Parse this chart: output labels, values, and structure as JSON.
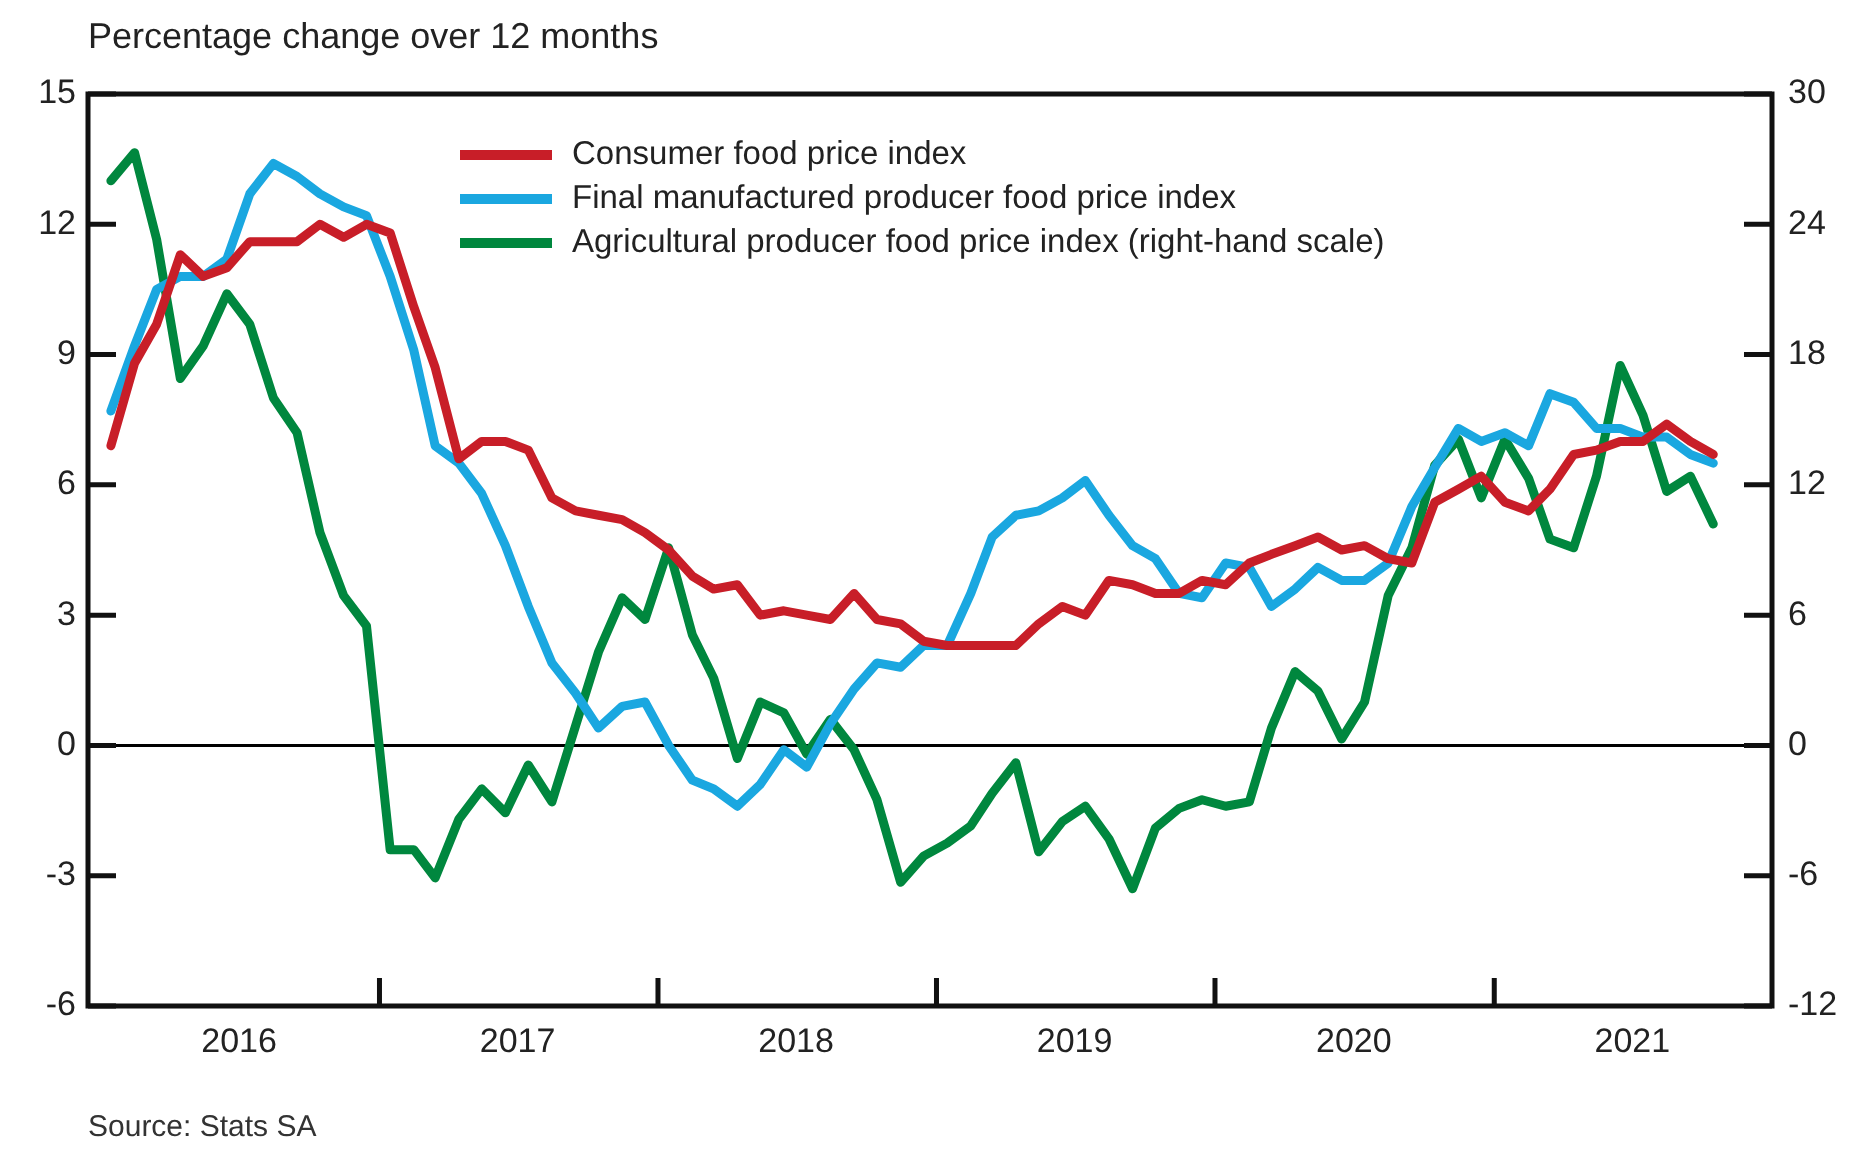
{
  "chart_data": {
    "type": "line",
    "ylabel": "Percentage change over 12 months",
    "x": [
      "2016-01-15",
      "2016-02-15",
      "2016-03-15",
      "2016-04-15",
      "2016-05-15",
      "2016-06-15",
      "2016-07-15",
      "2016-08-15",
      "2016-09-15",
      "2016-10-15",
      "2016-11-15",
      "2016-12-15",
      "2017-01-15",
      "2017-02-15",
      "2017-03-15",
      "2017-04-15",
      "2017-05-15",
      "2017-06-15",
      "2017-07-15",
      "2017-08-15",
      "2017-09-15",
      "2017-10-15",
      "2017-11-15",
      "2017-12-15",
      "2018-01-15",
      "2018-02-15",
      "2018-03-15",
      "2018-04-15",
      "2018-05-15",
      "2018-06-15",
      "2018-07-15",
      "2018-08-15",
      "2018-09-15",
      "2018-10-15",
      "2018-11-15",
      "2018-12-15",
      "2019-01-15",
      "2019-02-15",
      "2019-03-15",
      "2019-04-15",
      "2019-05-15",
      "2019-06-15",
      "2019-07-15",
      "2019-08-15",
      "2019-09-15",
      "2019-10-15",
      "2019-11-15",
      "2019-12-15",
      "2020-01-15",
      "2020-02-15",
      "2020-03-15",
      "2020-04-15",
      "2020-05-15",
      "2020-06-15",
      "2020-07-15",
      "2020-08-15",
      "2020-09-15",
      "2020-10-15",
      "2020-11-15",
      "2020-12-15",
      "2021-01-15",
      "2021-02-15",
      "2021-03-15",
      "2021-04-15",
      "2021-05-15",
      "2021-06-15",
      "2021-07-15",
      "2021-08-15",
      "2021-09-15",
      "2021-10-15"
    ],
    "series": [
      {
        "name": "Consumer food price index",
        "color": "#c81e28",
        "values": [
          6.9,
          8.8,
          9.7,
          11.3,
          10.8,
          11.0,
          11.6,
          11.6,
          11.6,
          12.0,
          11.7,
          12.0,
          11.8,
          10.1,
          8.7,
          6.6,
          7.0,
          7.0,
          6.8,
          5.7,
          5.4,
          5.3,
          5.2,
          4.9,
          4.5,
          3.9,
          3.6,
          3.7,
          3.0,
          3.1,
          3.0,
          2.9,
          3.5,
          2.9,
          2.8,
          2.4,
          2.3,
          2.3,
          2.3,
          2.3,
          2.8,
          3.2,
          3.0,
          3.8,
          3.7,
          3.5,
          3.5,
          3.8,
          3.7,
          4.2,
          4.4,
          4.6,
          4.8,
          4.5,
          4.6,
          4.3,
          4.2,
          5.6,
          5.9,
          6.2,
          5.6,
          5.4,
          5.9,
          6.7,
          6.8,
          7.0,
          7.0,
          7.4,
          7.0,
          6.7
        ]
      },
      {
        "name": "Final manufactured producer food price index",
        "color": "#1aa7e0",
        "values": [
          7.7,
          9.2,
          10.5,
          10.8,
          10.8,
          11.2,
          12.7,
          13.4,
          13.1,
          12.7,
          12.4,
          12.2,
          10.8,
          9.1,
          6.9,
          6.5,
          5.8,
          4.6,
          3.2,
          1.9,
          1.2,
          0.4,
          0.9,
          1.0,
          0.0,
          -0.8,
          -1.0,
          -1.4,
          -0.9,
          -0.1,
          -0.5,
          0.5,
          1.3,
          1.9,
          1.8,
          2.3,
          2.3,
          3.5,
          4.8,
          5.3,
          5.4,
          5.7,
          6.1,
          5.3,
          4.6,
          4.3,
          3.5,
          3.4,
          4.2,
          4.1,
          3.2,
          3.6,
          4.1,
          3.8,
          3.8,
          4.2,
          5.5,
          6.4,
          7.3,
          7.0,
          7.2,
          6.9,
          8.1,
          7.9,
          7.3,
          7.3,
          7.1,
          7.1,
          6.7,
          6.5
        ]
      },
      {
        "name": "Agricultural producer food price index (right-hand scale)",
        "color": "#00873e",
        "axis": "y2",
        "values": [
          26.0,
          27.3,
          23.3,
          16.9,
          18.4,
          20.8,
          19.4,
          16.0,
          14.4,
          9.8,
          6.9,
          5.5,
          -4.8,
          -4.8,
          -6.1,
          -3.4,
          -2.0,
          -3.1,
          -0.9,
          -2.6,
          0.9,
          4.3,
          6.8,
          5.8,
          9.1,
          5.1,
          3.1,
          -0.6,
          2.0,
          1.5,
          -0.4,
          1.2,
          -0.2,
          -2.5,
          -6.3,
          -5.1,
          -4.5,
          -3.7,
          -2.2,
          -0.8,
          -4.9,
          -3.5,
          -2.8,
          -4.3,
          -6.6,
          -3.8,
          -2.9,
          -2.5,
          -2.8,
          -2.6,
          0.8,
          3.4,
          2.5,
          0.3,
          2.0,
          6.9,
          9.1,
          12.9,
          14.1,
          11.4,
          14.1,
          12.3,
          9.5,
          9.1,
          12.4,
          17.5,
          15.2,
          11.7,
          12.4,
          10.2
        ]
      }
    ],
    "xlim": [
      "2015-12-16",
      "2021-12-31"
    ],
    "xticks": [
      {
        "value": "2016-07-01",
        "label": "2016"
      },
      {
        "value": "2017-01-01",
        "label": null
      },
      {
        "value": "2017-07-01",
        "label": "2017"
      },
      {
        "value": "2018-01-01",
        "label": null
      },
      {
        "value": "2018-07-01",
        "label": "2018"
      },
      {
        "value": "2019-01-01",
        "label": null
      },
      {
        "value": "2019-07-01",
        "label": "2019"
      },
      {
        "value": "2020-01-01",
        "label": null
      },
      {
        "value": "2020-07-01",
        "label": "2020"
      },
      {
        "value": "2021-01-01",
        "label": null
      },
      {
        "value": "2021-07-01",
        "label": "2021"
      }
    ],
    "ylim": [
      -6,
      15
    ],
    "yticks": [
      -6,
      -3,
      0,
      3,
      6,
      9,
      12,
      15
    ],
    "y2lim": [
      -12,
      30
    ],
    "y2ticks": [
      -12,
      -6,
      0,
      6,
      12,
      18,
      24,
      30
    ],
    "ref_lines": [
      {
        "axis": "y",
        "value": 0,
        "color": "#000000"
      }
    ],
    "grid": false,
    "legend": "top",
    "marker": "none",
    "line_style": "solid",
    "annotations": [
      "Source: Stats SA"
    ]
  }
}
